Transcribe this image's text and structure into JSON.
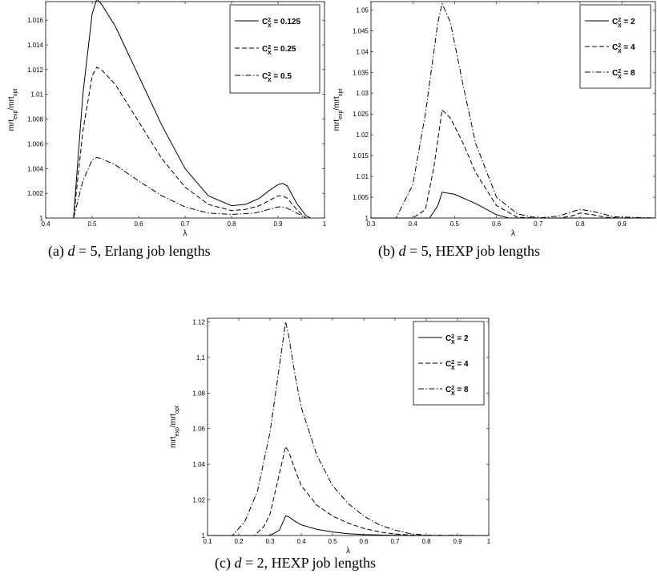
{
  "chart_data": [
    {
      "type": "line",
      "caption": {
        "label": "(a)",
        "var": "d",
        "eq": "= 5,",
        "rest": "Erlang job lengths"
      },
      "xlabel": "λ",
      "ylabel": "mrt_exp/mrt_opt",
      "xlim": [
        0.4,
        1
      ],
      "ylim": [
        1,
        1.0175
      ],
      "xticks": [
        "0.4",
        "0.5",
        "0.6",
        "0.7",
        "0.8",
        "0.9",
        "1"
      ],
      "yticks": [
        "1",
        "1.002",
        "1.004",
        "1.006",
        "1.008",
        "1.01",
        "1.012",
        "1.014",
        "1.016"
      ],
      "grid": false,
      "legend": "top-right",
      "series": [
        {
          "name": "C_X^2 = 0.125",
          "dash": "solid",
          "x": [
            0.46,
            0.48,
            0.5,
            0.51,
            0.52,
            0.55,
            0.6,
            0.65,
            0.7,
            0.75,
            0.8,
            0.83,
            0.86,
            0.88,
            0.9,
            0.91,
            0.92,
            0.94,
            0.96,
            0.97
          ],
          "y": [
            1.0,
            1.01,
            1.0165,
            1.0177,
            1.0173,
            1.0155,
            1.0115,
            1.0075,
            1.004,
            1.0018,
            1.001,
            1.0011,
            1.0016,
            1.0022,
            1.0027,
            1.0028,
            1.0026,
            1.0012,
            1.0002,
            1.0
          ]
        },
        {
          "name": "C_X^2 = 0.25",
          "dash": "dashed",
          "x": [
            0.46,
            0.48,
            0.5,
            0.51,
            0.52,
            0.55,
            0.6,
            0.65,
            0.7,
            0.75,
            0.8,
            0.83,
            0.86,
            0.88,
            0.9,
            0.91,
            0.92,
            0.94,
            0.96
          ],
          "y": [
            1.0,
            1.007,
            1.0115,
            1.0122,
            1.012,
            1.0108,
            1.0078,
            1.0048,
            1.0025,
            1.0011,
            1.0006,
            1.0007,
            1.001,
            1.0014,
            1.0018,
            1.0018,
            1.0016,
            1.0007,
            1.0
          ]
        },
        {
          "name": "C_X^2 = 0.5",
          "dash": "dashdot",
          "x": [
            0.46,
            0.48,
            0.5,
            0.51,
            0.52,
            0.55,
            0.6,
            0.65,
            0.7,
            0.75,
            0.8,
            0.85,
            0.88,
            0.9,
            0.91,
            0.92,
            0.94,
            0.96
          ],
          "y": [
            1.0,
            1.003,
            1.0047,
            1.0049,
            1.0048,
            1.0043,
            1.003,
            1.0018,
            1.0009,
            1.0004,
            1.0003,
            1.0004,
            1.0007,
            1.0009,
            1.0009,
            1.0008,
            1.0004,
            1.0
          ]
        }
      ]
    },
    {
      "type": "line",
      "caption": {
        "label": "(b)",
        "var": "d",
        "eq": "= 5,",
        "rest": "HEXP job lengths"
      },
      "xlabel": "λ",
      "ylabel": "mrt_exp/mrt_opt",
      "xlim": [
        0.3,
        0.98
      ],
      "ylim": [
        1,
        1.052
      ],
      "xticks": [
        "0.3",
        "0.4",
        "0.5",
        "0.6",
        "0.7",
        "0.8",
        "0.9"
      ],
      "yticks": [
        "1",
        "1.005",
        "1.01",
        "1.015",
        "1.02",
        "1.025",
        "1.03",
        "1.035",
        "1.04",
        "1.045",
        "1.05"
      ],
      "grid": false,
      "legend": "top-right",
      "series": [
        {
          "name": "C_X^2 = 2",
          "dash": "solid",
          "x": [
            0.3,
            0.44,
            0.46,
            0.47,
            0.5,
            0.55,
            0.6,
            0.63,
            0.7,
            0.98
          ],
          "y": [
            1.0,
            1.0,
            1.003,
            1.0062,
            1.0057,
            1.0035,
            1.0008,
            1.0,
            1.0,
            1.0
          ]
        },
        {
          "name": "C_X^2 = 4",
          "dash": "dashed",
          "x": [
            0.3,
            0.4,
            0.43,
            0.45,
            0.47,
            0.49,
            0.52,
            0.55,
            0.6,
            0.65,
            0.7,
            0.75,
            0.78,
            0.8,
            0.83,
            0.86,
            0.9,
            0.98
          ],
          "y": [
            1.0,
            1.0,
            1.002,
            1.012,
            1.026,
            1.024,
            1.018,
            1.011,
            1.003,
            1.0002,
            1.0,
            1.0,
            1.0005,
            1.0012,
            1.0008,
            1.0002,
            1.0,
            1.0
          ]
        },
        {
          "name": "C_X^2 = 8",
          "dash": "dashdot",
          "x": [
            0.3,
            0.36,
            0.4,
            0.43,
            0.46,
            0.47,
            0.49,
            0.52,
            0.55,
            0.6,
            0.65,
            0.7,
            0.75,
            0.78,
            0.8,
            0.84,
            0.88,
            0.98
          ],
          "y": [
            1.0,
            1.0,
            1.008,
            1.025,
            1.047,
            1.0515,
            1.047,
            1.032,
            1.018,
            1.005,
            1.001,
            1.0,
            1.0005,
            1.0015,
            1.0021,
            1.0014,
            1.0003,
            1.0
          ]
        }
      ]
    },
    {
      "type": "line",
      "caption": {
        "label": "(c)",
        "var": "d",
        "eq": "= 2,",
        "rest": "HEXP job lengths"
      },
      "xlabel": "λ",
      "ylabel": "mrt_exp/mrt_opt",
      "xlim": [
        0.1,
        1
      ],
      "ylim": [
        1,
        1.122
      ],
      "xticks": [
        "0.1",
        "0.2",
        "0.3",
        "0.4",
        "0.5",
        "0.6",
        "0.7",
        "0.8",
        "0.9",
        "1"
      ],
      "yticks": [
        "1",
        "1.02",
        "1.04",
        "1.06",
        "1.08",
        "1.1",
        "1.12"
      ],
      "grid": false,
      "legend": "top-right",
      "series": [
        {
          "name": "C_X^2 = 2",
          "dash": "solid",
          "x": [
            0.1,
            0.3,
            0.33,
            0.35,
            0.36,
            0.38,
            0.4,
            0.45,
            0.5,
            0.55,
            0.6,
            0.7,
            0.8,
            1.0
          ],
          "y": [
            1.0,
            1.0,
            1.003,
            1.011,
            1.0105,
            1.008,
            1.006,
            1.0035,
            1.002,
            1.001,
            1.0005,
            1.0001,
            1.0,
            1.0
          ]
        },
        {
          "name": "C_X^2 = 4",
          "dash": "dashed",
          "x": [
            0.1,
            0.25,
            0.28,
            0.3,
            0.32,
            0.35,
            0.36,
            0.38,
            0.4,
            0.45,
            0.5,
            0.55,
            0.6,
            0.65,
            0.7,
            0.75,
            0.8,
            1.0
          ],
          "y": [
            1.0,
            1.0,
            1.005,
            1.012,
            1.027,
            1.05,
            1.047,
            1.037,
            1.028,
            1.017,
            1.011,
            1.007,
            1.004,
            1.002,
            1.0008,
            1.0003,
            1.0,
            1.0
          ]
        },
        {
          "name": "C_X^2 = 8",
          "dash": "dashdot",
          "x": [
            0.1,
            0.18,
            0.22,
            0.26,
            0.3,
            0.33,
            0.35,
            0.36,
            0.38,
            0.4,
            0.45,
            0.5,
            0.55,
            0.6,
            0.65,
            0.7,
            0.75,
            0.8,
            1.0
          ],
          "y": [
            1.0,
            1.0,
            1.008,
            1.025,
            1.058,
            1.095,
            1.12,
            1.112,
            1.09,
            1.072,
            1.045,
            1.028,
            1.018,
            1.011,
            1.006,
            1.003,
            1.001,
            1.0002,
            1.0
          ]
        }
      ]
    }
  ]
}
